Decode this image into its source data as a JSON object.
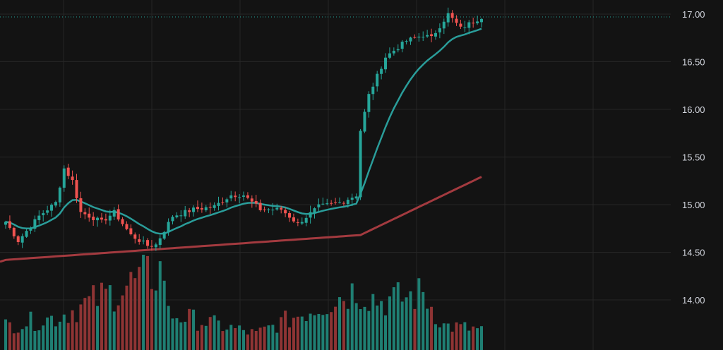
{
  "colors": {
    "background": "#131313",
    "grid": "#262626",
    "up": "#26a69a",
    "down": "#ef5350",
    "volume_up": "#1f7f73",
    "volume_down": "#8f3434",
    "ma_fast": "#2a9d9a",
    "ma_slow": "#a33a3f",
    "last_price_line": "#26a69a",
    "axis_text": "#d1d4dc"
  },
  "chart_data": {
    "type": "candlestick",
    "title": "",
    "xlabel": "",
    "ylabel": "",
    "ylim": [
      13.5,
      17.15
    ],
    "y_ticks": [
      "17.00",
      "16.50",
      "16.00",
      "15.50",
      "15.00",
      "14.50",
      "14.00"
    ],
    "y_tick_values": [
      17.0,
      16.5,
      16.0,
      15.5,
      15.0,
      14.5,
      14.0
    ],
    "grid": true,
    "last_price": 16.97,
    "bar_count": 115,
    "anchors": [
      {
        "i": 0,
        "close": 14.82
      },
      {
        "i": 3,
        "close": 14.62
      },
      {
        "i": 8,
        "close": 14.88
      },
      {
        "i": 12,
        "close": 15.02
      },
      {
        "i": 14,
        "close": 15.38
      },
      {
        "i": 16,
        "close": 15.25
      },
      {
        "i": 18,
        "close": 14.92
      },
      {
        "i": 23,
        "close": 14.82
      },
      {
        "i": 26,
        "close": 14.92
      },
      {
        "i": 30,
        "close": 14.68
      },
      {
        "i": 34,
        "close": 14.57
      },
      {
        "i": 36,
        "close": 14.58
      },
      {
        "i": 40,
        "close": 14.88
      },
      {
        "i": 45,
        "close": 14.95
      },
      {
        "i": 50,
        "close": 14.98
      },
      {
        "i": 54,
        "close": 15.1
      },
      {
        "i": 57,
        "close": 15.1
      },
      {
        "i": 61,
        "close": 14.95
      },
      {
        "i": 66,
        "close": 14.95
      },
      {
        "i": 70,
        "close": 14.8
      },
      {
        "i": 75,
        "close": 14.98
      },
      {
        "i": 80,
        "close": 15.02
      },
      {
        "i": 84,
        "close": 15.1
      },
      {
        "i": 85,
        "close": 15.78
      },
      {
        "i": 87,
        "close": 16.15
      },
      {
        "i": 91,
        "close": 16.55
      },
      {
        "i": 96,
        "close": 16.72
      },
      {
        "i": 100,
        "close": 16.78
      },
      {
        "i": 102,
        "close": 16.75
      },
      {
        "i": 106,
        "close": 17.0
      },
      {
        "i": 109,
        "close": 16.85
      },
      {
        "i": 114,
        "close": 16.97
      }
    ],
    "volume_anchors": [
      {
        "i": 0,
        "value": 0.3
      },
      {
        "i": 12,
        "value": 0.4
      },
      {
        "i": 38,
        "value": 1.0
      },
      {
        "i": 39,
        "value": 0.45
      },
      {
        "i": 60,
        "value": 0.2
      },
      {
        "i": 84,
        "value": 0.75
      },
      {
        "i": 90,
        "value": 0.6
      },
      {
        "i": 96,
        "value": 0.65
      },
      {
        "i": 100,
        "value": 0.7
      },
      {
        "i": 105,
        "value": 0.3
      },
      {
        "i": 114,
        "value": 0.25
      }
    ],
    "series": [
      {
        "type": "line",
        "role": "moving-average-fast"
      },
      {
        "type": "line",
        "role": "moving-average-slow"
      },
      {
        "type": "bar",
        "role": "volume"
      }
    ]
  }
}
